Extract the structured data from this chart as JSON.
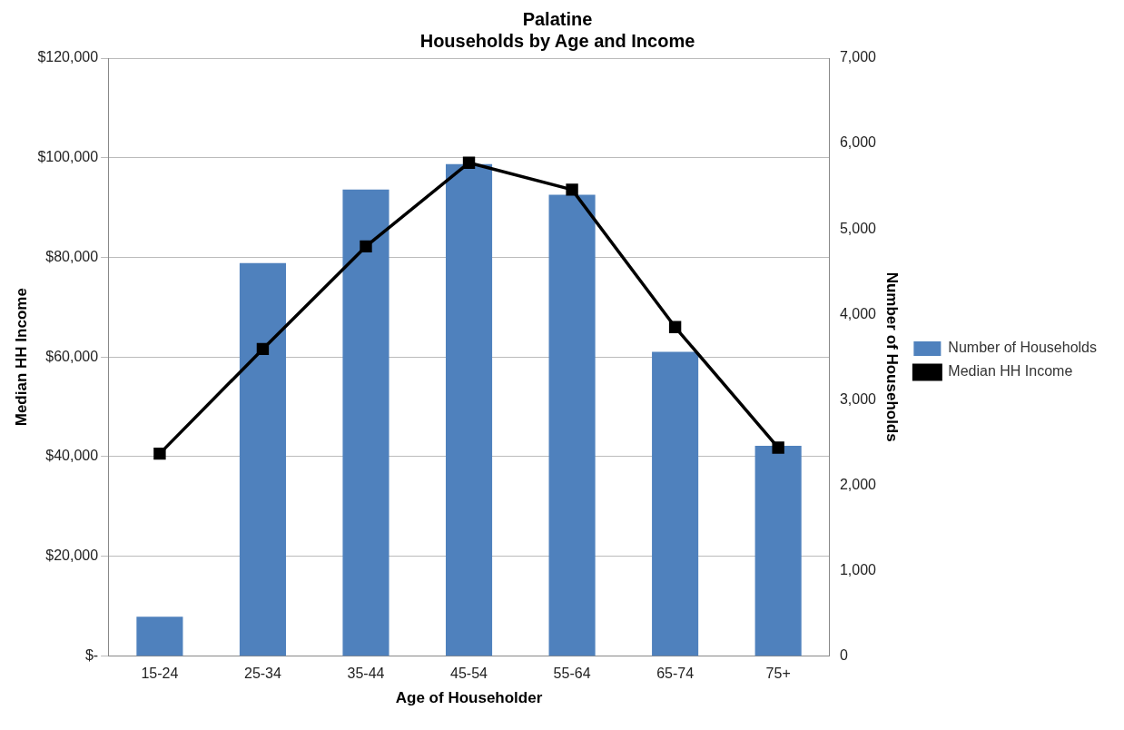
{
  "chart_data": {
    "type": "bar",
    "title": "Palatine",
    "subtitle": "Households by Age and Income",
    "xlabel": "Age of Householder",
    "ylabel": "Median HH Income",
    "y2label": "Number of Households",
    "categories": [
      "15-24",
      "25-34",
      "35-44",
      "45-54",
      "55-64",
      "65-74",
      "75+"
    ],
    "series": [
      {
        "name": "Number of Households",
        "axis": "y2",
        "color": "#4f81bd",
        "values": [
          460,
          4600,
          5460,
          5760,
          5400,
          3560,
          2460
        ]
      },
      {
        "name": "Median HH Income",
        "type": "line",
        "axis": "y",
        "color": "#000000",
        "marker": "square",
        "values": [
          40600,
          61600,
          82200,
          99000,
          93600,
          66000,
          41800
        ]
      }
    ],
    "ylim": [
      0,
      120000
    ],
    "yticks": [
      {
        "value": 0,
        "label": "$-"
      },
      {
        "value": 20000,
        "label": "$20,000"
      },
      {
        "value": 40000,
        "label": "$40,000"
      },
      {
        "value": 60000,
        "label": "$60,000"
      },
      {
        "value": 80000,
        "label": "$80,000"
      },
      {
        "value": 100000,
        "label": "$100,000"
      },
      {
        "value": 120000,
        "label": "$120,000"
      }
    ],
    "y2lim": [
      0,
      7000
    ],
    "y2ticks": [
      0,
      {
        "value": 1000,
        "label": "1,000"
      },
      {
        "value": 2000,
        "label": "2,000"
      },
      {
        "value": 3000,
        "label": "3,000"
      },
      {
        "value": 4000,
        "label": "4,000"
      },
      {
        "value": 5000,
        "label": "5,000"
      },
      {
        "value": 6000,
        "label": "6,000"
      },
      {
        "value": 7000,
        "label": "7,000"
      }
    ],
    "grid": "y",
    "legend": "right"
  }
}
